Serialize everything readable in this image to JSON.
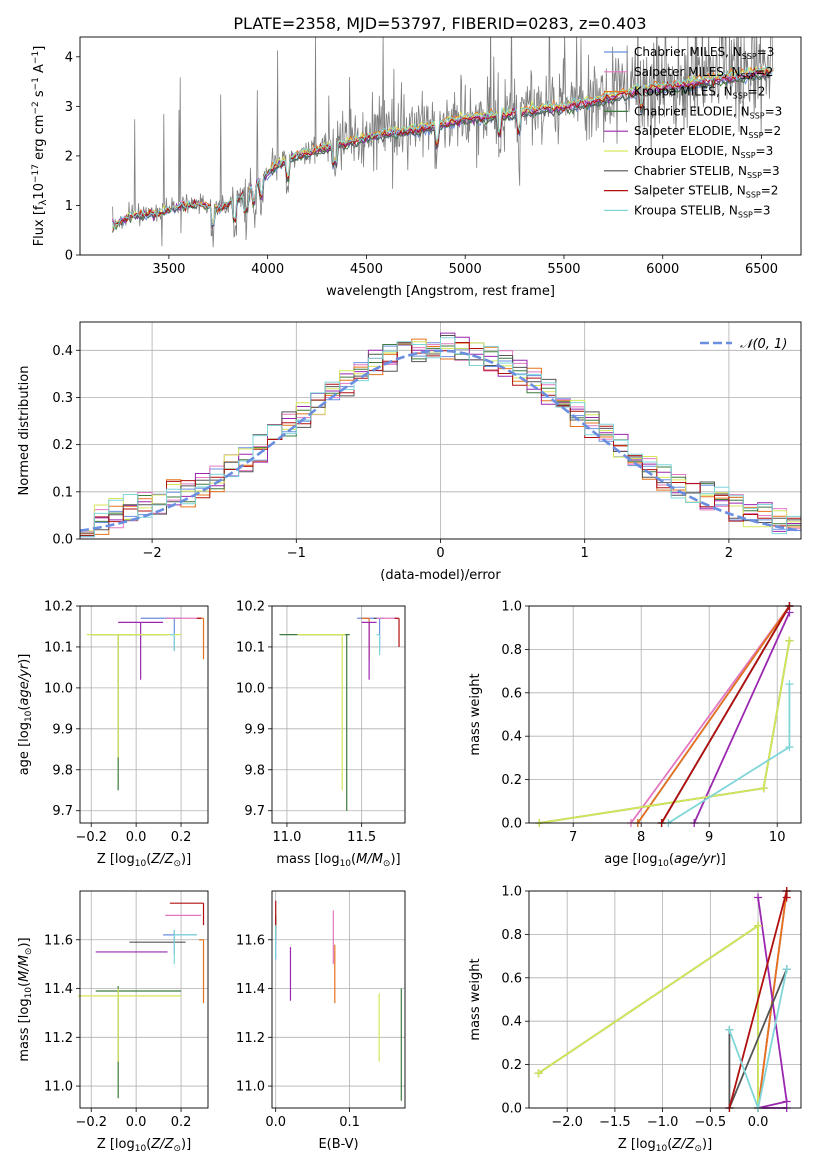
{
  "title": "PLATE=2358, MJD=53797, FIBERID=0283, z=0.403",
  "colors": {
    "Chabrier MILES": "#6a8fe0",
    "Salpeter MILES": "#e377c2",
    "Kroupa MILES": "#e6731c",
    "Chabrier ELODIE": "#3d7a3d",
    "Salpeter ELODIE": "#9b27b0",
    "Kroupa ELODIE": "#d6e65a",
    "Chabrier STELIB": "#555555",
    "Salpeter STELIB": "#b01010",
    "Kroupa STELIB": "#7fd6d9",
    "data": "#808080",
    "gauss": "#6a8fe0"
  },
  "chart_data": [
    {
      "id": "spectrum",
      "type": "line",
      "xlabel": "wavelength [Angstrom, rest frame]",
      "ylabel": "Flux [f_λ 10^-17 erg cm^-2 s^-1 A^-1]",
      "xlim": [
        3050,
        6700
      ],
      "ylim": [
        0,
        4.4
      ],
      "xticks": [
        3500,
        4000,
        4500,
        5000,
        5500,
        6000,
        6500
      ],
      "yticks": [
        0,
        1,
        2,
        3,
        4
      ],
      "legend": "top-right",
      "legend_entries": [
        {
          "name": "Chabrier MILES",
          "base": "Chabrier MILES, N",
          "sub": "SSP",
          "tail": "=3"
        },
        {
          "name": "Salpeter MILES",
          "base": "Salpeter MILES, N",
          "sub": "SSP",
          "tail": "=2"
        },
        {
          "name": "Kroupa MILES",
          "base": "Kroupa MILES, N",
          "sub": "SSP",
          "tail": "=2"
        },
        {
          "name": "Chabrier ELODIE",
          "base": "Chabrier ELODIE, N",
          "sub": "SSP",
          "tail": "=3"
        },
        {
          "name": "Salpeter ELODIE",
          "base": "Salpeter ELODIE, N",
          "sub": "SSP",
          "tail": "=2"
        },
        {
          "name": "Kroupa ELODIE",
          "base": "Kroupa ELODIE, N",
          "sub": "SSP",
          "tail": "=3"
        },
        {
          "name": "Chabrier STELIB",
          "base": "Chabrier STELIB, N",
          "sub": "SSP",
          "tail": "=3"
        },
        {
          "name": "Salpeter STELIB",
          "base": "Salpeter STELIB, N",
          "sub": "SSP",
          "tail": "=2"
        },
        {
          "name": "Kroupa STELIB",
          "base": "Kroupa STELIB, N",
          "sub": "SSP",
          "tail": "=3"
        }
      ],
      "continuum": [
        [
          3220,
          0.6
        ],
        [
          3300,
          0.8
        ],
        [
          3450,
          0.85
        ],
        [
          3550,
          1.0
        ],
        [
          3650,
          1.05
        ],
        [
          3750,
          0.95
        ],
        [
          3850,
          1.15
        ],
        [
          3950,
          1.5
        ],
        [
          4050,
          1.85
        ],
        [
          4150,
          2.05
        ],
        [
          4300,
          2.2
        ],
        [
          4450,
          2.35
        ],
        [
          4600,
          2.5
        ],
        [
          4750,
          2.55
        ],
        [
          4850,
          2.65
        ],
        [
          5000,
          2.8
        ],
        [
          5150,
          2.85
        ],
        [
          5300,
          2.95
        ],
        [
          5500,
          3.05
        ],
        [
          5700,
          3.2
        ],
        [
          5900,
          3.4
        ],
        [
          6100,
          3.5
        ],
        [
          6300,
          3.62
        ],
        [
          6500,
          3.75
        ]
      ]
    },
    {
      "id": "residuals",
      "type": "line",
      "xlabel": "(data-model)/error",
      "ylabel": "Normed distribution",
      "xlim": [
        -2.5,
        2.5
      ],
      "ylim": [
        0,
        0.46
      ],
      "xticks": [
        -2,
        -1,
        0,
        1,
        2
      ],
      "yticks": [
        0.0,
        0.1,
        0.2,
        0.3,
        0.4
      ],
      "legend": "top-right",
      "legend_label": "𝒩(0, 1)",
      "gaussian": {
        "mu": 0,
        "sigma": 1
      },
      "bin_width": 0.1
    },
    {
      "id": "age-vs-Z",
      "type": "scatter",
      "xlabel": "Z [log10(Z/Z⊙)]",
      "ylabel": "age [log10(age/yr)]",
      "xlim": [
        -0.25,
        0.32
      ],
      "ylim": [
        9.67,
        10.2
      ],
      "xticks": [
        -0.2,
        0.0,
        0.2
      ],
      "yticks": [
        9.7,
        9.8,
        9.9,
        10.0,
        10.1,
        10.2
      ],
      "series": [
        {
          "name": "Chabrier MILES",
          "x": 0.17,
          "y": 10.17,
          "xerr": [
            0.15,
            0.03
          ],
          "yerr": [
            0.08,
            0.0
          ]
        },
        {
          "name": "Salpeter MILES",
          "x": 0.25,
          "y": 10.17,
          "xerr": [
            0.12,
            0.04
          ],
          "yerr": [
            0.0,
            0.0
          ]
        },
        {
          "name": "Kroupa MILES",
          "x": 0.3,
          "y": 10.17,
          "xerr": [
            0.02,
            0.0
          ],
          "yerr": [
            0.1,
            0.0
          ]
        },
        {
          "name": "Chabrier ELODIE",
          "x": -0.08,
          "y": 10.13,
          "xerr": [
            0.12,
            0.22
          ],
          "yerr": [
            0.38,
            0.0
          ]
        },
        {
          "name": "Salpeter ELODIE",
          "x": 0.02,
          "y": 10.16,
          "xerr": [
            0.1,
            0.1
          ],
          "yerr": [
            0.14,
            0.0
          ]
        },
        {
          "name": "Kroupa ELODIE",
          "x": -0.08,
          "y": 10.13,
          "xerr": [
            0.14,
            0.28
          ],
          "yerr": [
            0.3,
            0.0
          ]
        },
        {
          "name": "Chabrier STELIB",
          "x": 0.28,
          "y": 10.17,
          "xerr": [
            0.0,
            0.0
          ],
          "yerr": [
            0.0,
            0.0
          ]
        },
        {
          "name": "Salpeter STELIB",
          "x": 0.29,
          "y": 10.17,
          "xerr": [
            0.02,
            0.0
          ],
          "yerr": [
            0.0,
            0.0
          ]
        },
        {
          "name": "Kroupa STELIB",
          "x": 0.17,
          "y": 10.13,
          "xerr": [
            0.02,
            0.0
          ],
          "yerr": [
            0.04,
            0.0
          ]
        }
      ]
    },
    {
      "id": "age-vs-mass",
      "type": "scatter",
      "xlabel": "mass [log10(M/M⊙)]",
      "ylabel": "",
      "xlim": [
        10.9,
        11.79
      ],
      "ylim": [
        9.67,
        10.2
      ],
      "xticks": [
        11.0,
        11.5
      ],
      "yticks": [
        9.7,
        9.8,
        9.9,
        10.0,
        10.1,
        10.2
      ],
      "series": [
        {
          "name": "Chabrier MILES",
          "x": 11.62,
          "y": 10.17,
          "xerr": [
            0.15,
            0.03
          ],
          "yerr": [
            0.08,
            0.0
          ]
        },
        {
          "name": "Salpeter MILES",
          "x": 11.7,
          "y": 10.17,
          "xerr": [
            0.1,
            0.04
          ],
          "yerr": [
            0.0,
            0.0
          ]
        },
        {
          "name": "Kroupa MILES",
          "x": 11.55,
          "y": 10.17,
          "xerr": [
            0.05,
            0.0
          ],
          "yerr": [
            0.1,
            0.0
          ]
        },
        {
          "name": "Chabrier ELODIE",
          "x": 11.4,
          "y": 10.13,
          "xerr": [
            0.45,
            0.02
          ],
          "yerr": [
            0.43,
            0.0
          ]
        },
        {
          "name": "Salpeter ELODIE",
          "x": 11.55,
          "y": 10.16,
          "xerr": [
            0.05,
            0.05
          ],
          "yerr": [
            0.14,
            0.0
          ]
        },
        {
          "name": "Kroupa ELODIE",
          "x": 11.37,
          "y": 10.13,
          "xerr": [
            0.3,
            0.02
          ],
          "yerr": [
            0.38,
            0.0
          ]
        },
        {
          "name": "Chabrier STELIB",
          "x": 11.6,
          "y": 10.17,
          "xerr": [
            0.02,
            0.0
          ],
          "yerr": [
            0.0,
            0.0
          ]
        },
        {
          "name": "Salpeter STELIB",
          "x": 11.75,
          "y": 10.17,
          "xerr": [
            0.03,
            0.0
          ],
          "yerr": [
            0.07,
            0.0
          ]
        },
        {
          "name": "Kroupa STELIB",
          "x": 11.62,
          "y": 10.13,
          "xerr": [
            0.02,
            0.0
          ],
          "yerr": [
            0.05,
            0.0
          ]
        }
      ]
    },
    {
      "id": "mass-weight-vs-age",
      "type": "line",
      "xlabel": "age [log10(age/yr)]",
      "ylabel": "mass weight",
      "xlim": [
        6.35,
        10.35
      ],
      "ylim": [
        0,
        1
      ],
      "xticks": [
        7,
        8,
        9,
        10
      ],
      "yticks": [
        0.0,
        0.2,
        0.4,
        0.6,
        0.8,
        1.0
      ],
      "series": [
        {
          "name": "Chabrier MILES",
          "x": [
            7.95,
            10.18
          ],
          "y": [
            0.0,
            1.0
          ]
        },
        {
          "name": "Salpeter MILES",
          "x": [
            7.85,
            10.18
          ],
          "y": [
            0.0,
            1.0
          ]
        },
        {
          "name": "Kroupa MILES",
          "x": [
            7.95,
            10.18
          ],
          "y": [
            0.0,
            1.0
          ]
        },
        {
          "name": "Chabrier ELODIE",
          "x": [
            6.5,
            9.8,
            10.18
          ],
          "y": [
            0.0,
            0.16,
            0.84
          ]
        },
        {
          "name": "Salpeter ELODIE",
          "x": [
            8.78,
            10.18
          ],
          "y": [
            0.0,
            0.97
          ]
        },
        {
          "name": "Kroupa ELODIE",
          "x": [
            6.5,
            9.8,
            10.18
          ],
          "y": [
            0.0,
            0.16,
            0.84
          ]
        },
        {
          "name": "Chabrier STELIB",
          "x": [
            8.3,
            10.18
          ],
          "y": [
            0.0,
            1.0
          ]
        },
        {
          "name": "Salpeter STELIB",
          "x": [
            8.3,
            10.18
          ],
          "y": [
            0.0,
            1.0
          ]
        },
        {
          "name": "Kroupa STELIB",
          "x": [
            8.4,
            10.18,
            10.18
          ],
          "y": [
            0.0,
            0.35,
            0.64
          ]
        }
      ]
    },
    {
      "id": "mass-vs-Z",
      "type": "scatter",
      "xlabel": "Z [log10(Z/Z⊙)]",
      "ylabel": "mass [log10(M/M⊙)]",
      "xlim": [
        -0.25,
        0.32
      ],
      "ylim": [
        10.91,
        11.8
      ],
      "xticks": [
        -0.2,
        0.0,
        0.2
      ],
      "yticks": [
        11.0,
        11.2,
        11.4,
        11.6
      ],
      "series": [
        {
          "name": "Chabrier MILES",
          "x": 0.17,
          "y": 11.62,
          "xerr": [
            0.05,
            0.1
          ],
          "yerr": [
            0.08,
            0.02
          ]
        },
        {
          "name": "Salpeter MILES",
          "x": 0.25,
          "y": 11.7,
          "xerr": [
            0.12,
            0.04
          ],
          "yerr": [
            0.0,
            0.0
          ]
        },
        {
          "name": "Kroupa MILES",
          "x": 0.3,
          "y": 11.6,
          "xerr": [
            0.02,
            0.0
          ],
          "yerr": [
            0.26,
            0.0
          ]
        },
        {
          "name": "Chabrier ELODIE",
          "x": -0.08,
          "y": 11.39,
          "xerr": [
            0.1,
            0.28
          ],
          "yerr": [
            0.44,
            0.02
          ]
        },
        {
          "name": "Salpeter ELODIE",
          "x": 0.02,
          "y": 11.55,
          "xerr": [
            0.2,
            0.12
          ],
          "yerr": [
            0.0,
            0.0
          ]
        },
        {
          "name": "Kroupa ELODIE",
          "x": -0.08,
          "y": 11.37,
          "xerr": [
            0.18,
            0.28
          ],
          "yerr": [
            0.27,
            0.03
          ]
        },
        {
          "name": "Chabrier STELIB",
          "x": 0.17,
          "y": 11.59,
          "xerr": [
            0.2,
            0.05
          ],
          "yerr": [
            0.0,
            0.0
          ]
        },
        {
          "name": "Salpeter STELIB",
          "x": 0.3,
          "y": 11.75,
          "xerr": [
            0.15,
            0.0
          ],
          "yerr": [
            0.09,
            0.0
          ]
        },
        {
          "name": "Kroupa STELIB",
          "x": 0.17,
          "y": 11.62,
          "xerr": [
            0.0,
            0.1
          ],
          "yerr": [
            0.12,
            0.02
          ]
        }
      ]
    },
    {
      "id": "mass-vs-EBV",
      "type": "scatter",
      "xlabel": "E(B-V)",
      "ylabel": "",
      "xlim": [
        -0.005,
        0.175
      ],
      "ylim": [
        10.91,
        11.8
      ],
      "xticks": [
        0.0,
        0.1
      ],
      "yticks": [
        11.0,
        11.2,
        11.4,
        11.6
      ],
      "series": [
        {
          "name": "Chabrier MILES",
          "x": 0.0,
          "y": 11.62,
          "xerr": [
            0,
            0
          ],
          "yerr": [
            0.1,
            0.04
          ]
        },
        {
          "name": "Salpeter MILES",
          "x": 0.078,
          "y": 11.62,
          "xerr": [
            0,
            0
          ],
          "yerr": [
            0.12,
            0.1
          ]
        },
        {
          "name": "Kroupa MILES",
          "x": 0.08,
          "y": 11.46,
          "xerr": [
            0,
            0
          ],
          "yerr": [
            0.12,
            0.12
          ]
        },
        {
          "name": "Chabrier ELODIE",
          "x": 0.17,
          "y": 11.2,
          "xerr": [
            0,
            0
          ],
          "yerr": [
            0.26,
            0.2
          ]
        },
        {
          "name": "Salpeter ELODIE",
          "x": 0.02,
          "y": 11.47,
          "xerr": [
            0,
            0
          ],
          "yerr": [
            0.12,
            0.1
          ]
        },
        {
          "name": "Kroupa ELODIE",
          "x": 0.14,
          "y": 11.24,
          "xerr": [
            0,
            0
          ],
          "yerr": [
            0.14,
            0.14
          ]
        },
        {
          "name": "Chabrier STELIB",
          "x": 0.0,
          "y": 11.65,
          "xerr": [
            0,
            0
          ],
          "yerr": [
            0.05,
            0.05
          ]
        },
        {
          "name": "Salpeter STELIB",
          "x": 0.0,
          "y": 11.7,
          "xerr": [
            0,
            0
          ],
          "yerr": [
            0.05,
            0.06
          ]
        },
        {
          "name": "Kroupa STELIB",
          "x": 0.0,
          "y": 11.6,
          "xerr": [
            0,
            0
          ],
          "yerr": [
            0.08,
            0.06
          ]
        }
      ]
    },
    {
      "id": "mass-weight-vs-Z",
      "type": "line",
      "xlabel": "Z [log10(Z/Z⊙)]",
      "ylabel": "mass weight",
      "xlim": [
        -2.4,
        0.45
      ],
      "ylim": [
        0,
        1
      ],
      "xticks": [
        -2.0,
        -1.5,
        -1.0,
        -0.5,
        0.0
      ],
      "yticks": [
        0.0,
        0.2,
        0.4,
        0.6,
        0.8,
        1.0
      ],
      "series": [
        {
          "name": "Chabrier MILES",
          "x": [
            0.0,
            0.3
          ],
          "y": [
            0.0,
            1.0
          ]
        },
        {
          "name": "Salpeter MILES",
          "x": [
            0.0,
            0.3
          ],
          "y": [
            0.0,
            1.0
          ]
        },
        {
          "name": "Kroupa MILES",
          "x": [
            0.0,
            0.3
          ],
          "y": [
            0.0,
            1.0
          ]
        },
        {
          "name": "Chabrier ELODIE",
          "x": [
            -2.3,
            0.0,
            0.0
          ],
          "y": [
            0.16,
            0.84,
            0.0
          ]
        },
        {
          "name": "Salpeter ELODIE",
          "x": [
            0.0,
            0.3,
            0.0,
            0.3
          ],
          "y": [
            0.97,
            0.03,
            0.0,
            0.0
          ]
        },
        {
          "name": "Kroupa ELODIE",
          "x": [
            -2.3,
            0.0,
            0.0
          ],
          "y": [
            0.16,
            0.84,
            0.0
          ]
        },
        {
          "name": "Chabrier STELIB",
          "x": [
            -0.3,
            -0.3,
            0.3
          ],
          "y": [
            0.36,
            0.0,
            0.64
          ]
        },
        {
          "name": "Salpeter STELIB",
          "x": [
            -0.3,
            0.3,
            0.3
          ],
          "y": [
            0.0,
            1.0,
            0.97
          ]
        },
        {
          "name": "Kroupa STELIB",
          "x": [
            -0.3,
            0.0,
            0.3
          ],
          "y": [
            0.36,
            0.0,
            0.64
          ]
        }
      ]
    }
  ]
}
